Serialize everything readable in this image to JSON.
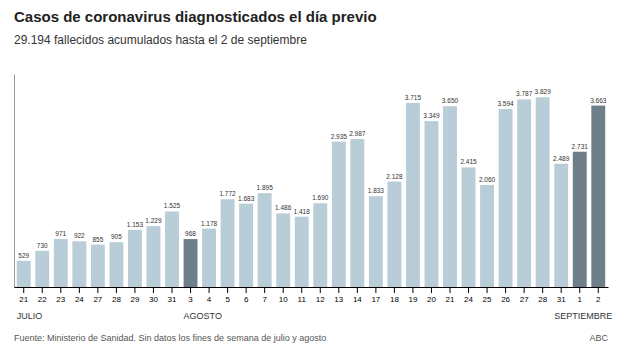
{
  "chart_data": {
    "type": "bar",
    "title": "Casos de coronavirus diagnosticados el día previo",
    "subtitle": "29.194 fallecidos acumulados hasta el 2 de septiembre",
    "categories": [
      "21",
      "22",
      "23",
      "24",
      "27",
      "28",
      "29",
      "30",
      "31",
      "3",
      "4",
      "5",
      "6",
      "7",
      "10",
      "11",
      "12",
      "13",
      "14",
      "17",
      "18",
      "19",
      "20",
      "21",
      "24",
      "25",
      "26",
      "27",
      "28",
      "31",
      "1",
      "2"
    ],
    "values": [
      529,
      730,
      971,
      922,
      855,
      905,
      1153,
      1229,
      1525,
      968,
      1178,
      1772,
      1683,
      1895,
      1486,
      1418,
      1690,
      2935,
      2987,
      1833,
      2128,
      3715,
      3349,
      3650,
      2415,
      2060,
      3594,
      3787,
      3829,
      2489,
      2731,
      3663
    ],
    "value_labels": [
      "529",
      "730",
      "971",
      "922",
      "855",
      "905",
      "1.153",
      "1.229",
      "1.525",
      "968",
      "1.178",
      "1.772",
      "1.683",
      "1.895",
      "1.486",
      "1.418",
      "1.690",
      "2.935",
      "2.987",
      "1.833",
      "2.128",
      "3.715",
      "3.349",
      "3.650",
      "2.415",
      "2.060",
      "3.594",
      "3.787",
      "3.829",
      "2.489",
      "2.731",
      "3.663"
    ],
    "colors": [
      "#b8cdd8",
      "#b8cdd8",
      "#b8cdd8",
      "#b8cdd8",
      "#b8cdd8",
      "#b8cdd8",
      "#b8cdd8",
      "#b8cdd8",
      "#b8cdd8",
      "#6e7f8a",
      "#b8cdd8",
      "#b8cdd8",
      "#b8cdd8",
      "#b8cdd8",
      "#b8cdd8",
      "#b8cdd8",
      "#b8cdd8",
      "#b8cdd8",
      "#b8cdd8",
      "#b8cdd8",
      "#b8cdd8",
      "#b8cdd8",
      "#b8cdd8",
      "#b8cdd8",
      "#b8cdd8",
      "#b8cdd8",
      "#b8cdd8",
      "#b8cdd8",
      "#b8cdd8",
      "#b8cdd8",
      "#6e7f8a",
      "#6e7f8a"
    ],
    "month_labels": [
      {
        "label": "JULIO",
        "index": 0
      },
      {
        "label": "AGOSTO",
        "index": 9
      },
      {
        "label": "SEPTIEMBRE",
        "index": 29
      }
    ],
    "annotations": [
      "Fuente: Ministerio de Sanidad. Sin datos los fines de semana de julio y agosto",
      "ABC"
    ],
    "ylim": [
      0,
      4300
    ],
    "data_labels": true,
    "tick_labels": "x",
    "grid": false
  }
}
